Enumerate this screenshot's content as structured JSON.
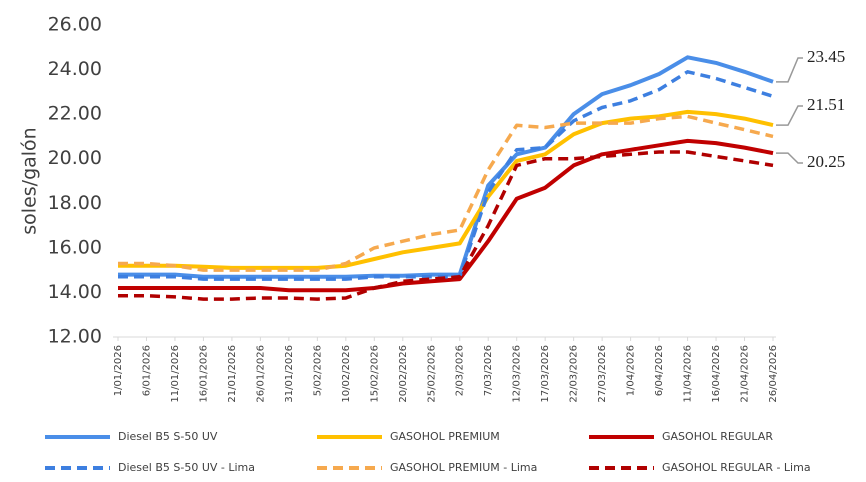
{
  "chart_data": {
    "type": "line",
    "y_label": "soles/galón",
    "x": [
      "1/01/2026",
      "6/01/2026",
      "11/01/2026",
      "16/01/2026",
      "21/01/2026",
      "26/01/2026",
      "31/01/2026",
      "5/02/2026",
      "10/02/2026",
      "15/02/2026",
      "20/02/2026",
      "25/02/2026",
      "2/03/2026",
      "7/03/2026",
      "12/03/2026",
      "17/03/2026",
      "22/03/2026",
      "27/03/2026",
      "1/04/2026",
      "6/04/2026",
      "11/04/2026",
      "16/04/2026",
      "21/04/2026",
      "26/04/2026"
    ],
    "ylim": [
      12,
      26
    ],
    "yticks": [
      {
        "value": 12,
        "label": "12.00"
      },
      {
        "value": 14,
        "label": "14.00"
      },
      {
        "value": 16,
        "label": "16.00"
      },
      {
        "value": 18,
        "label": "18.00"
      },
      {
        "value": 20,
        "label": "20.00"
      },
      {
        "value": 22,
        "label": "22.00"
      },
      {
        "value": 24,
        "label": "24.00"
      },
      {
        "value": 26,
        "label": "26.00"
      }
    ],
    "grid": false,
    "legend": "bottom",
    "series": [
      {
        "name": "Diesel B5 S-50 UV",
        "color": "#4a8ee8",
        "style": "solid",
        "end_label": true,
        "values": [
          14.8,
          14.8,
          14.8,
          14.7,
          14.7,
          14.7,
          14.7,
          14.7,
          14.7,
          14.75,
          14.75,
          14.8,
          14.8,
          18.8,
          20.2,
          20.5,
          22.0,
          22.9,
          23.3,
          23.8,
          24.55,
          24.3,
          23.9,
          23.45
        ]
      },
      {
        "name": "GASOHOL PREMIUM",
        "color": "#ffc000",
        "style": "solid",
        "end_label": true,
        "values": [
          15.2,
          15.2,
          15.2,
          15.15,
          15.1,
          15.1,
          15.1,
          15.1,
          15.2,
          15.5,
          15.8,
          16.0,
          16.2,
          18.3,
          19.9,
          20.2,
          21.1,
          21.6,
          21.8,
          21.9,
          22.1,
          22.0,
          21.8,
          21.51
        ]
      },
      {
        "name": "GASOHOL REGULAR",
        "color": "#c00000",
        "style": "solid",
        "end_label": true,
        "values": [
          14.2,
          14.2,
          14.2,
          14.2,
          14.2,
          14.2,
          14.1,
          14.1,
          14.1,
          14.2,
          14.4,
          14.5,
          14.6,
          16.3,
          18.2,
          18.7,
          19.7,
          20.2,
          20.4,
          20.6,
          20.8,
          20.7,
          20.5,
          20.25
        ]
      },
      {
        "name": "Diesel B5 S-50 UV - Lima",
        "color": "#3d7fe0",
        "style": "dashed",
        "end_label": false,
        "values": [
          14.7,
          14.7,
          14.7,
          14.6,
          14.6,
          14.6,
          14.6,
          14.6,
          14.6,
          14.7,
          14.7,
          14.7,
          14.7,
          18.5,
          20.4,
          20.5,
          21.7,
          22.3,
          22.6,
          23.1,
          23.9,
          23.6,
          23.2,
          22.8
        ]
      },
      {
        "name": "GASOHOL PREMIUM - Lima",
        "color": "#f6a94e",
        "style": "dashed",
        "end_label": false,
        "values": [
          15.3,
          15.3,
          15.2,
          15.0,
          15.0,
          15.0,
          15.0,
          15.0,
          15.3,
          16.0,
          16.3,
          16.6,
          16.8,
          19.5,
          21.5,
          21.4,
          21.6,
          21.6,
          21.6,
          21.8,
          21.9,
          21.6,
          21.3,
          21.0
        ]
      },
      {
        "name": "GASOHOL REGULAR - Lima",
        "color": "#b00000",
        "style": "dashed",
        "end_label": false,
        "values": [
          13.85,
          13.85,
          13.8,
          13.7,
          13.7,
          13.75,
          13.75,
          13.7,
          13.75,
          14.2,
          14.5,
          14.6,
          14.7,
          17.0,
          19.7,
          20.0,
          20.0,
          20.1,
          20.2,
          20.3,
          20.3,
          20.1,
          19.9,
          19.7
        ]
      }
    ]
  }
}
